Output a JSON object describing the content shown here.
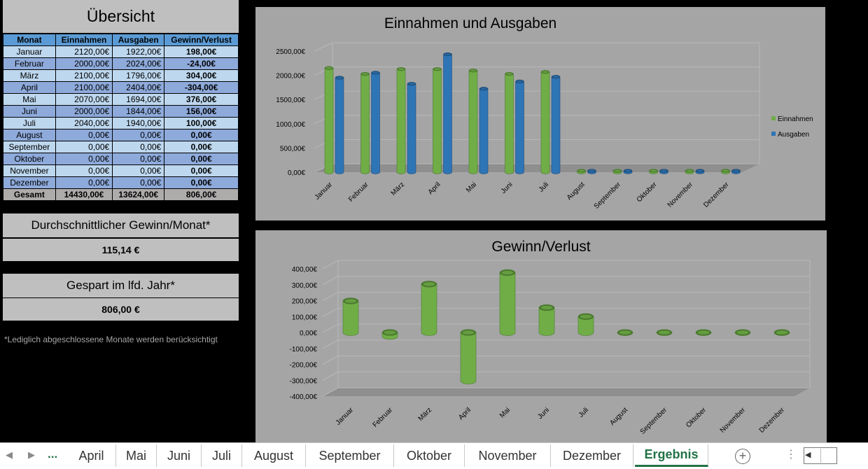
{
  "overview": {
    "title": "Übersicht",
    "headers": [
      "Monat",
      "Einnahmen",
      "Ausgaben",
      "Gewinn/Verlust"
    ],
    "rows": [
      {
        "month": "Januar",
        "income": "2120,00€",
        "expense": "1922,00€",
        "profit": "198,00€"
      },
      {
        "month": "Februar",
        "income": "2000,00€",
        "expense": "2024,00€",
        "profit": "-24,00€"
      },
      {
        "month": "März",
        "income": "2100,00€",
        "expense": "1796,00€",
        "profit": "304,00€"
      },
      {
        "month": "April",
        "income": "2100,00€",
        "expense": "2404,00€",
        "profit": "-304,00€"
      },
      {
        "month": "Mai",
        "income": "2070,00€",
        "expense": "1694,00€",
        "profit": "376,00€"
      },
      {
        "month": "Juni",
        "income": "2000,00€",
        "expense": "1844,00€",
        "profit": "156,00€"
      },
      {
        "month": "Juli",
        "income": "2040,00€",
        "expense": "1940,00€",
        "profit": "100,00€"
      },
      {
        "month": "August",
        "income": "0,00€",
        "expense": "0,00€",
        "profit": "0,00€"
      },
      {
        "month": "September",
        "income": "0,00€",
        "expense": "0,00€",
        "profit": "0,00€"
      },
      {
        "month": "Oktober",
        "income": "0,00€",
        "expense": "0,00€",
        "profit": "0,00€"
      },
      {
        "month": "November",
        "income": "0,00€",
        "expense": "0,00€",
        "profit": "0,00€"
      },
      {
        "month": "Dezember",
        "income": "0,00€",
        "expense": "0,00€",
        "profit": "0,00€"
      }
    ],
    "total": {
      "label": "Gesamt",
      "income": "14430,00€",
      "expense": "13624,00€",
      "profit": "806,00€"
    }
  },
  "stats": {
    "avg_label": "Durchschnittlicher Gewinn/Monat*",
    "avg_value": "115,14 €",
    "saved_label": "Gespart im lfd. Jahr*",
    "saved_value": "806,00 €",
    "footnote": "*Lediglich abgeschlossene Monate werden berücksichtigt"
  },
  "colors": {
    "income": "#70ad47",
    "expense": "#2e75b6",
    "profit": "#70ad47",
    "chart_bg": "#a5a5a5"
  },
  "chart_data": [
    {
      "type": "bar",
      "title": "Einnahmen und Ausgaben",
      "categories": [
        "Januar",
        "Februar",
        "März",
        "April",
        "Mai",
        "Juni",
        "Juli",
        "August",
        "September",
        "Oktober",
        "November",
        "Dezember"
      ],
      "series": [
        {
          "name": "Einnahmen",
          "values": [
            2120,
            2000,
            2100,
            2100,
            2070,
            2000,
            2040,
            0,
            0,
            0,
            0,
            0
          ]
        },
        {
          "name": "Ausgaben",
          "values": [
            1922,
            2024,
            1796,
            2404,
            1694,
            1844,
            1940,
            0,
            0,
            0,
            0,
            0
          ]
        }
      ],
      "yticks": [
        "0,00€",
        "500,00€",
        "1000,00€",
        "1500,00€",
        "2000,00€",
        "2500,00€"
      ],
      "ylim": [
        0,
        2500
      ],
      "legend": "right",
      "grid": true
    },
    {
      "type": "bar",
      "title": "Gewinn/Verlust",
      "categories": [
        "Januar",
        "Februar",
        "März",
        "April",
        "Mai",
        "Juni",
        "Juli",
        "August",
        "September",
        "Oktober",
        "November",
        "Dezember"
      ],
      "series": [
        {
          "values": [
            198,
            -24,
            304,
            -304,
            376,
            156,
            100,
            0,
            0,
            0,
            0,
            0
          ]
        }
      ],
      "yticks": [
        "-400,00€",
        "-300,00€",
        "-200,00€",
        "-100,00€",
        "0,00€",
        "100,00€",
        "200,00€",
        "300,00€",
        "400,00€"
      ],
      "ylim": [
        -400,
        400
      ],
      "legend": "none",
      "grid": true
    }
  ],
  "tabs": {
    "more": "...",
    "items": [
      "April",
      "Mai",
      "Juni",
      "Juli",
      "August",
      "September",
      "Oktober",
      "November",
      "Dezember",
      "Ergebnis"
    ],
    "active": "Ergebnis",
    "add": "+"
  }
}
